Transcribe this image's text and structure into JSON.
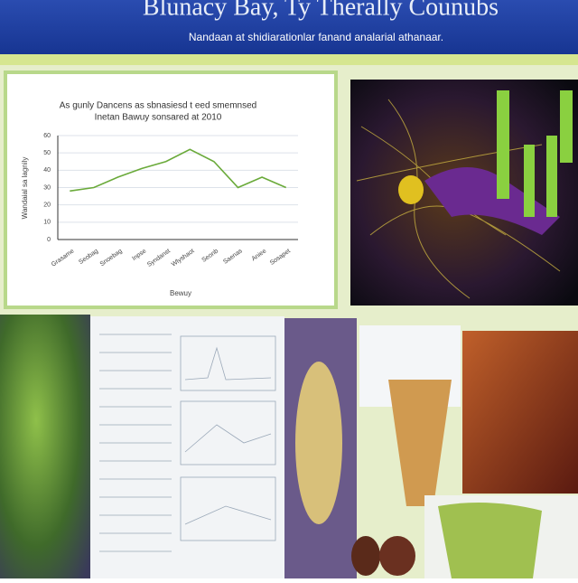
{
  "header": {
    "title": "Blunacy Bay, Ty Therally Counubs",
    "subtitle": "Nandaan at shidiarationlar fanand analarial athanaar."
  },
  "chart_data": {
    "type": "line",
    "title": "As gunly Dancens as sbnasiesd t eed smemnsed",
    "subtitle": "Inetan Bawuy sonsared at 2010",
    "x_label": "Bewuy",
    "y_label": "Wandaial sa lagnily",
    "categories": [
      "Grasame",
      "Seobag",
      "Snoebag",
      "Inpse",
      "Syndanst",
      "Wlyshaot",
      "Seonb",
      "Saenas",
      "Aniee",
      "Sosapet"
    ],
    "series": [
      {
        "name": "Bewuy",
        "color": "#6aaa3a",
        "values": [
          28,
          30,
          36,
          41,
          45,
          52,
          45,
          30,
          36,
          30
        ]
      }
    ],
    "ylim": [
      0,
      60
    ],
    "yticks": [
      0,
      10,
      20,
      30,
      40,
      50,
      60
    ],
    "grid": true
  }
}
